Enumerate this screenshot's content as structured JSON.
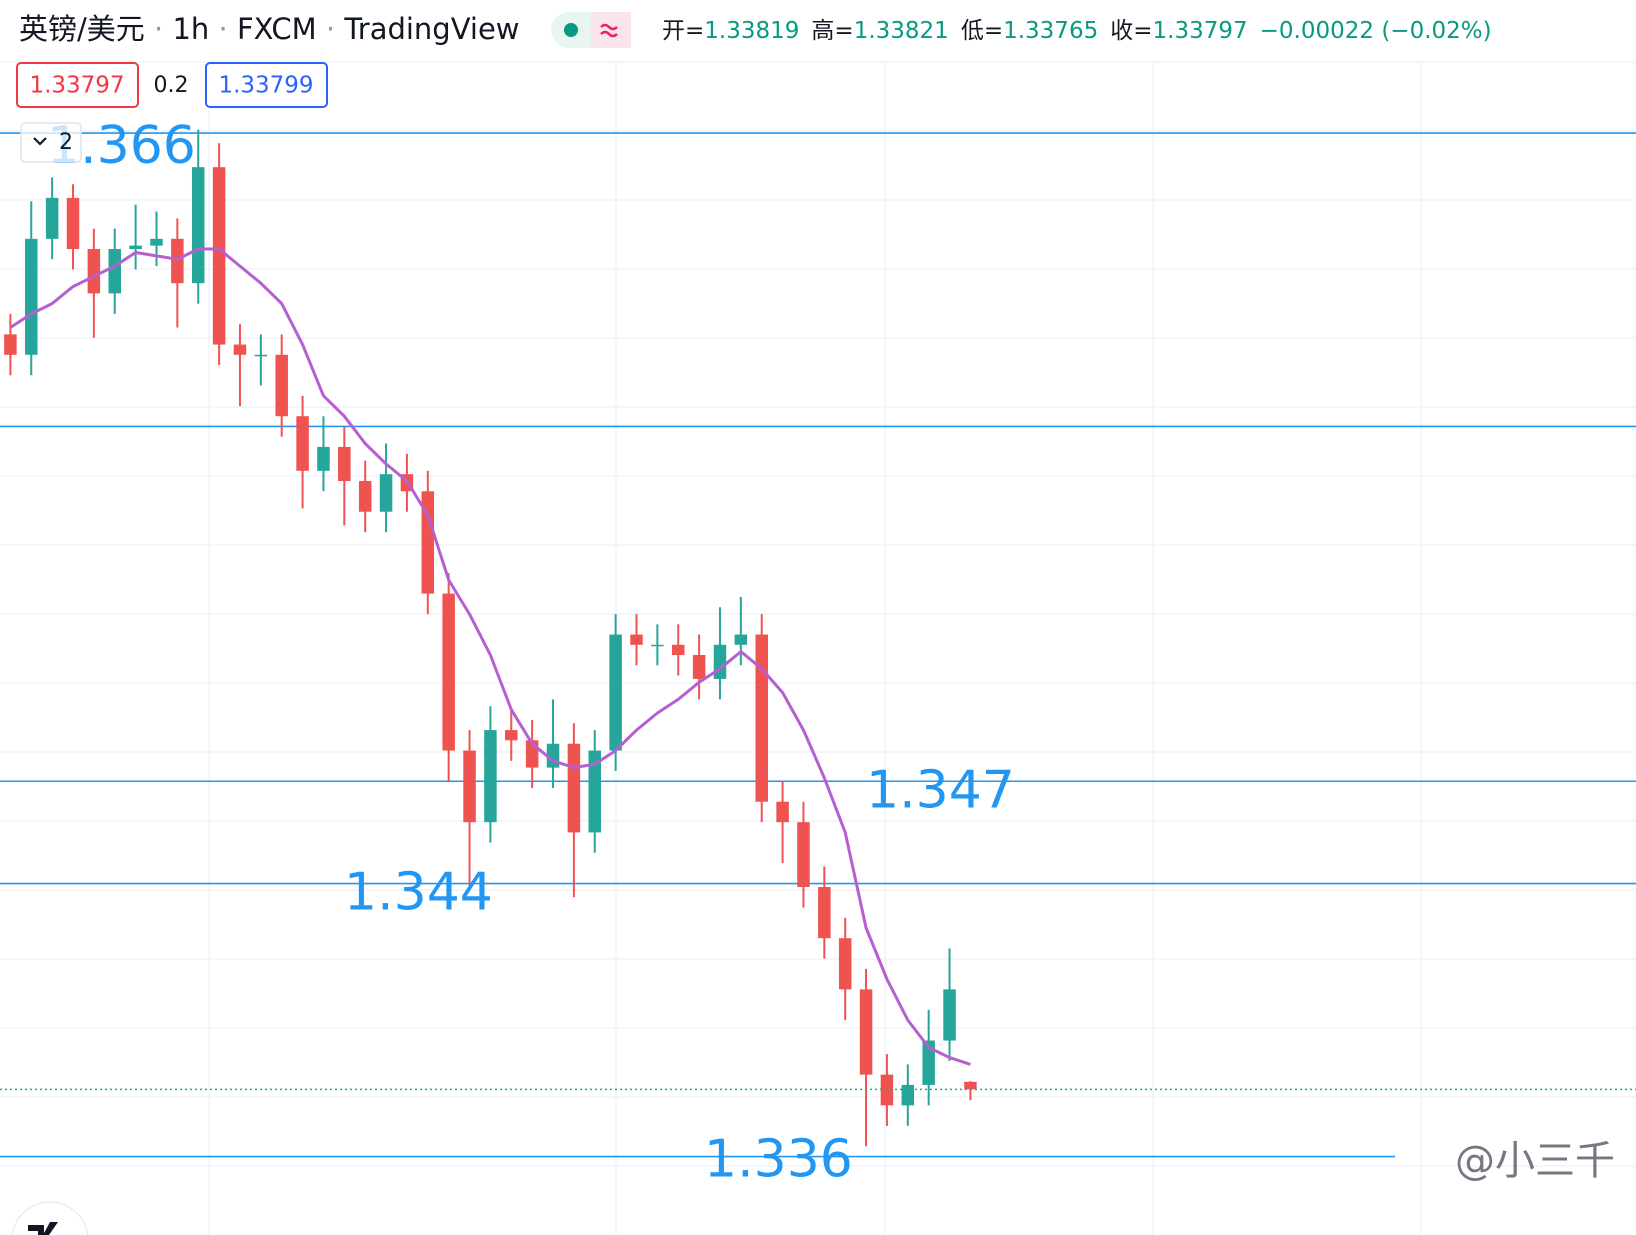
{
  "chart_data": {
    "type": "candlestick",
    "symbol": "英镑/美元",
    "interval": "1h",
    "exchange": "FXCM",
    "platform": "TradingView",
    "ohlc_labels": [
      "开=",
      "高=",
      "低=",
      "收="
    ],
    "change": "−0.00022 (−0.02%)",
    "spread": 0.2,
    "ask": 1.33799,
    "collapsed_count": 2,
    "watermark": "@小三千",
    "ylim": [
      1.3337,
      1.3699
    ],
    "up_color": "#26a69a",
    "down_color": "#ef5350",
    "ma_color": "#b65fd0",
    "level_color": "#2196f3",
    "open": [
      1.3601,
      1.3595,
      1.3629,
      1.3641,
      1.3626,
      1.3613,
      1.3626,
      1.3627,
      1.3629,
      1.3616,
      1.365,
      1.3598,
      1.3595,
      1.3595,
      1.3577,
      1.3561,
      1.3568,
      1.3558,
      1.3549,
      1.356,
      1.3555,
      1.3525,
      1.3479,
      1.3458,
      1.3485,
      1.3482,
      1.3474,
      1.3481,
      1.3455,
      1.3479,
      1.3513,
      1.351,
      1.351,
      1.3507,
      1.35,
      1.351,
      1.3513,
      1.3464,
      1.3458,
      1.3439,
      1.3424,
      1.3409,
      1.3384,
      1.3375,
      1.3381,
      1.3394,
      1.33819
    ],
    "high": [
      1.3607,
      1.364,
      1.3647,
      1.3645,
      1.3632,
      1.3632,
      1.3639,
      1.3637,
      1.3635,
      1.3661,
      1.3657,
      1.3604,
      1.3601,
      1.3601,
      1.3583,
      1.3577,
      1.3574,
      1.3564,
      1.3569,
      1.3566,
      1.3561,
      1.3531,
      1.3485,
      1.3492,
      1.3491,
      1.3488,
      1.3494,
      1.3487,
      1.3485,
      1.3519,
      1.3519,
      1.3516,
      1.3516,
      1.3513,
      1.3521,
      1.3524,
      1.3519,
      1.347,
      1.3464,
      1.3445,
      1.343,
      1.3415,
      1.339,
      1.3387,
      1.3403,
      1.3421,
      1.33821
    ],
    "low": [
      1.3589,
      1.3589,
      1.3623,
      1.362,
      1.36,
      1.3607,
      1.362,
      1.3621,
      1.3603,
      1.361,
      1.3592,
      1.358,
      1.3586,
      1.3571,
      1.355,
      1.3555,
      1.3545,
      1.3543,
      1.3543,
      1.3549,
      1.3519,
      1.347,
      1.3438,
      1.3452,
      1.3476,
      1.3468,
      1.3468,
      1.3436,
      1.3449,
      1.3473,
      1.3504,
      1.3504,
      1.3501,
      1.3494,
      1.3494,
      1.3504,
      1.3458,
      1.3446,
      1.3433,
      1.3418,
      1.34,
      1.3363,
      1.3369,
      1.3369,
      1.3375,
      1.3388,
      1.33765
    ],
    "close": [
      1.3595,
      1.3629,
      1.3641,
      1.3626,
      1.3613,
      1.3626,
      1.3627,
      1.3629,
      1.3616,
      1.365,
      1.3598,
      1.3595,
      1.3595,
      1.3577,
      1.3561,
      1.3568,
      1.3558,
      1.3549,
      1.356,
      1.3555,
      1.3525,
      1.3479,
      1.3458,
      1.3485,
      1.3482,
      1.3474,
      1.3481,
      1.3455,
      1.3479,
      1.3513,
      1.351,
      1.351,
      1.3507,
      1.35,
      1.351,
      1.3513,
      1.3464,
      1.3458,
      1.3439,
      1.3424,
      1.3409,
      1.3384,
      1.3375,
      1.3381,
      1.3394,
      1.3409,
      1.33797
    ],
    "ma": [
      1.3603,
      1.3607,
      1.361,
      1.3615,
      1.3618,
      1.3621,
      1.3625,
      1.3624,
      1.3623,
      1.3626,
      1.3626,
      1.3621,
      1.3616,
      1.361,
      1.3598,
      1.3583,
      1.3577,
      1.3569,
      1.3563,
      1.3558,
      1.3548,
      1.3529,
      1.3519,
      1.3507,
      1.3491,
      1.3481,
      1.3476,
      1.3474,
      1.3475,
      1.3479,
      1.3485,
      1.349,
      1.3494,
      1.3499,
      1.3503,
      1.3508,
      1.3503,
      1.3496,
      1.3485,
      1.3471,
      1.3455,
      1.3427,
      1.3412,
      1.34,
      1.3392,
      1.3389,
      1.3387
    ],
    "price_levels": [
      1.366,
      1.347,
      1.344,
      1.336
    ],
    "plain_levels": [
      1.3574
    ]
  }
}
